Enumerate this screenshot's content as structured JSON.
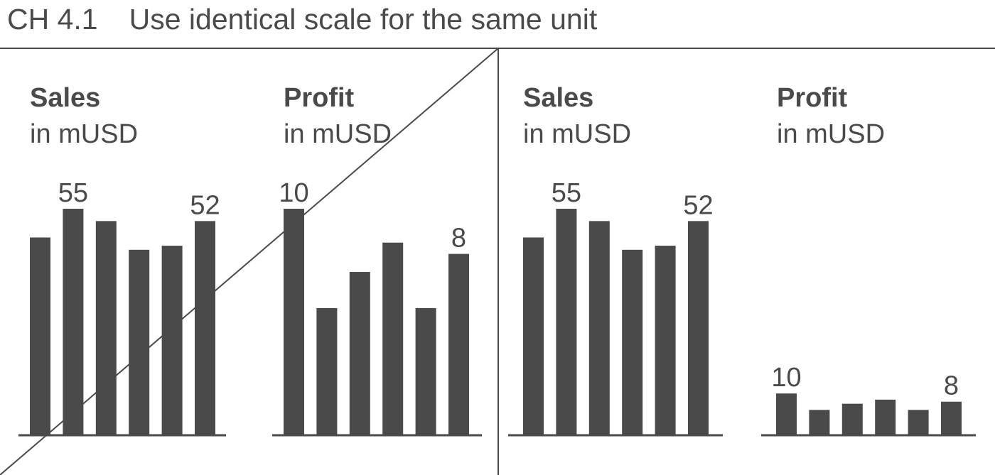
{
  "header": {
    "code": "CH 4.1",
    "title": "Use identical scale for the same unit"
  },
  "colors": {
    "bar": "#4a4a4a",
    "line": "#4a4a4a"
  },
  "chart_data": [
    {
      "type": "bar",
      "title": "Sales",
      "subtitle": "in mUSD",
      "values": [
        48,
        55,
        52,
        45,
        46,
        52
      ],
      "data_labels": [
        {
          "index": 1,
          "text": "55"
        },
        {
          "index": 5,
          "text": "52"
        }
      ],
      "ylim": [
        0,
        55
      ],
      "grid": false,
      "note": "crossed-out"
    },
    {
      "type": "bar",
      "title": "Profit",
      "subtitle": "in mUSD",
      "values": [
        10,
        5.6,
        7.2,
        8.5,
        5.6,
        8
      ],
      "data_labels": [
        {
          "index": 0,
          "text": "10"
        },
        {
          "index": 5,
          "text": "8"
        }
      ],
      "ylim": [
        0,
        10
      ],
      "grid": false,
      "note": "crossed-out"
    },
    {
      "type": "bar",
      "title": "Sales",
      "subtitle": "in mUSD",
      "values": [
        48,
        55,
        52,
        45,
        46,
        52
      ],
      "data_labels": [
        {
          "index": 1,
          "text": "55"
        },
        {
          "index": 5,
          "text": "52"
        }
      ],
      "ylim": [
        0,
        55
      ],
      "grid": false
    },
    {
      "type": "bar",
      "title": "Profit",
      "subtitle": "in mUSD",
      "values": [
        10,
        6,
        7.5,
        8.5,
        6,
        8
      ],
      "data_labels": [
        {
          "index": 0,
          "text": "10"
        },
        {
          "index": 5,
          "text": "8"
        }
      ],
      "ylim": [
        0,
        55
      ],
      "grid": false
    }
  ]
}
